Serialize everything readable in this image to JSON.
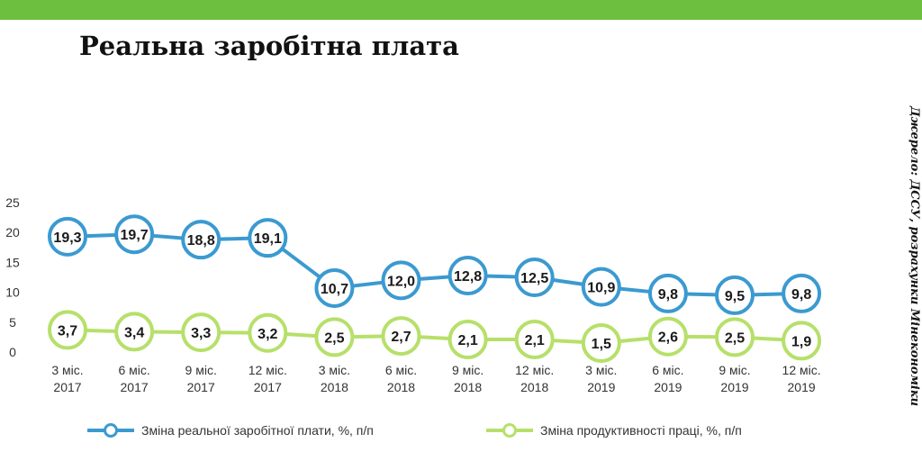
{
  "header": {
    "title": "Реальна заробітна плата",
    "source": "Джерело: ДССУ, розрахунки Мінекономіки"
  },
  "colors": {
    "top_bar": "#6cbf3f",
    "wage": "#3b9ad0",
    "productivity": "#b6e06a"
  },
  "chart_data": {
    "type": "line",
    "title": "Реальна заробітна плата",
    "categories": [
      [
        "3 міс.",
        "2017"
      ],
      [
        "6 міс.",
        "2017"
      ],
      [
        "9 міс.",
        "2017"
      ],
      [
        "12 міс.",
        "2017"
      ],
      [
        "3 міс.",
        "2018"
      ],
      [
        "6 міс.",
        "2018"
      ],
      [
        "9 міс.",
        "2018"
      ],
      [
        "12 міс.",
        "2018"
      ],
      [
        "3 міс.",
        "2019"
      ],
      [
        "6 міс.",
        "2019"
      ],
      [
        "9 міс.",
        "2019"
      ],
      [
        "12 міс.",
        "2019"
      ]
    ],
    "ylim": [
      0,
      25
    ],
    "yticks": [
      0,
      5,
      10,
      15,
      20,
      25
    ],
    "grid": false,
    "legend_position": "bottom",
    "series": [
      {
        "name": "Зміна реальної заробітної плати, %, п/п",
        "color": "#3b9ad0",
        "values": [
          19.3,
          19.7,
          18.8,
          19.1,
          10.7,
          12.0,
          12.8,
          12.5,
          10.9,
          9.8,
          9.5,
          9.8
        ],
        "labels": [
          "19,3",
          "19,7",
          "18,8",
          "19,1",
          "10,7",
          "12,0",
          "12,8",
          "12,5",
          "10,9",
          "9,8",
          "9,5",
          "9,8"
        ]
      },
      {
        "name": "Зміна продуктивності праці, %, п/п",
        "color": "#b6e06a",
        "values": [
          3.7,
          3.4,
          3.3,
          3.2,
          2.5,
          2.7,
          2.1,
          2.1,
          1.5,
          2.6,
          2.5,
          1.9
        ],
        "labels": [
          "3,7",
          "3,4",
          "3,3",
          "3,2",
          "2,5",
          "2,7",
          "2,1",
          "2,1",
          "1,5",
          "2,6",
          "2,5",
          "1,9"
        ]
      }
    ]
  }
}
